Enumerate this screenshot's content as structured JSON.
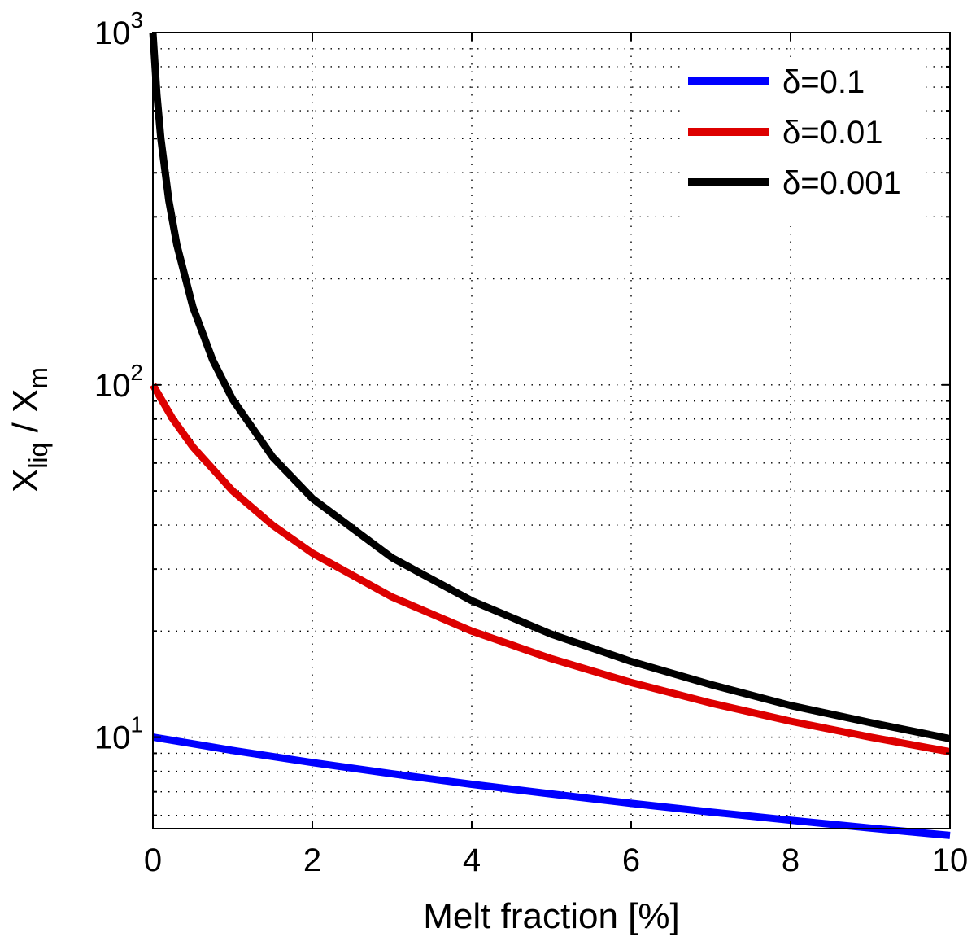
{
  "chart_data": {
    "type": "line",
    "title": "",
    "xlabel": "Melt fraction [%]",
    "ylabel": {
      "base": "X",
      "num_sub": "liq",
      "sep": " / ",
      "den_base": "X",
      "den_sub": "m"
    },
    "xlim": [
      0,
      10
    ],
    "ylim": [
      5.5,
      1000
    ],
    "yscale": "log",
    "grid": true,
    "xticks": [
      0,
      2,
      4,
      6,
      8,
      10
    ],
    "xtick_labels": [
      "0",
      "2",
      "4",
      "6",
      "8",
      "10"
    ],
    "yticks": [
      10,
      100,
      1000
    ],
    "ytick_labels": [
      {
        "base": "10",
        "exp": "1"
      },
      {
        "base": "10",
        "exp": "2"
      },
      {
        "base": "10",
        "exp": "3"
      }
    ],
    "legend_position": "top-right",
    "series": [
      {
        "name": "δ=0.1",
        "color": "#0000ff",
        "delta": 0.1,
        "x": [
          0,
          1,
          2,
          3,
          4,
          5,
          6,
          7,
          8,
          9,
          10
        ],
        "y": [
          10.0,
          9.17,
          8.47,
          7.87,
          7.35,
          6.9,
          6.49,
          6.13,
          5.81,
          5.52,
          5.26
        ]
      },
      {
        "name": "δ=0.01",
        "color": "#dd0000",
        "delta": 0.01,
        "x": [
          0,
          0.25,
          0.5,
          1,
          1.5,
          2,
          3,
          4,
          5,
          6,
          7,
          8,
          9,
          10
        ],
        "y": [
          100.0,
          80.0,
          66.7,
          50.0,
          40.0,
          33.3,
          25.0,
          20.0,
          16.7,
          14.3,
          12.5,
          11.1,
          10.0,
          9.09
        ]
      },
      {
        "name": "δ=0.001",
        "color": "#000000",
        "delta": 0.001,
        "x": [
          0,
          0.05,
          0.1,
          0.2,
          0.3,
          0.5,
          0.75,
          1,
          1.5,
          2,
          3,
          4,
          5,
          6,
          7,
          8,
          9,
          10
        ],
        "y": [
          1000.0,
          666.7,
          500.0,
          333.3,
          250.0,
          166.7,
          117.6,
          90.9,
          62.5,
          47.6,
          32.3,
          24.4,
          19.6,
          16.4,
          14.1,
          12.3,
          11.0,
          9.9
        ]
      }
    ]
  }
}
